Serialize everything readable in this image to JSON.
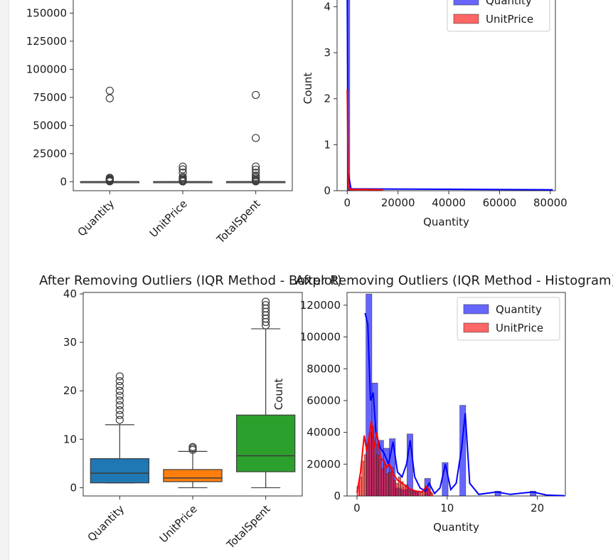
{
  "chart_data": [
    {
      "type": "box",
      "title": "",
      "xlabel": "",
      "ylabel": "",
      "categories": [
        "Quantity",
        "UnitPrice",
        "TotalSpent"
      ],
      "yticks": [
        0,
        25000,
        50000,
        75000,
        100000,
        125000,
        150000
      ],
      "ylim": [
        -8000,
        168000
      ],
      "boxes": [
        {
          "name": "Quantity",
          "q1": 1,
          "median": 3,
          "q3": 12,
          "whisker_low": 1,
          "whisker_high": 27,
          "outliers": [
            81000,
            74200,
            3500,
            2800,
            2000,
            1500,
            1000,
            600,
            300
          ]
        },
        {
          "name": "UnitPrice",
          "q1": 1.25,
          "median": 2,
          "q3": 4,
          "whisker_low": 0,
          "whisker_high": 8,
          "outliers": [
            13500,
            11000,
            8100,
            4200,
            3100,
            2000,
            1200,
            600,
            200
          ]
        },
        {
          "name": "TotalSpent",
          "q1": 4,
          "median": 12,
          "q3": 20,
          "whisker_low": 0,
          "whisker_high": 44,
          "outliers": [
            77200,
            38900,
            13500,
            10800,
            8000,
            5500,
            4000,
            2800,
            1500,
            800,
            300
          ]
        }
      ],
      "colors": {
        "box": "#ffffff",
        "line": "#3c3c3c"
      }
    },
    {
      "type": "histogram",
      "title": "",
      "xlabel": "Quantity",
      "ylabel": "Count",
      "xticks": [
        0,
        20000,
        40000,
        60000,
        80000
      ],
      "yticks": [
        0,
        1,
        2,
        3,
        4
      ],
      "xlim": [
        -4000,
        82000
      ],
      "ylim": [
        0,
        4.3
      ],
      "series": [
        {
          "name": "Quantity",
          "color": "#0000ff",
          "bins": [
            {
              "x0": 0,
              "x1": 1000,
              "count": 4.3
            },
            {
              "x0": 1000,
              "x1": 3000,
              "count": 0.04
            }
          ],
          "kde": [
            [
              0,
              4.3
            ],
            [
              300,
              0.4
            ],
            [
              1500,
              0.04
            ],
            [
              81000,
              0.02
            ]
          ]
        },
        {
          "name": "UnitPrice",
          "color": "#ff0000",
          "bins": [
            {
              "x0": 0,
              "x1": 400,
              "count": 2.2
            },
            {
              "x0": 400,
              "x1": 14000,
              "count": 0.03
            }
          ],
          "kde": [
            [
              0,
              2.2
            ],
            [
              400,
              0.1
            ],
            [
              1500,
              0.03
            ],
            [
              14000,
              0.02
            ]
          ]
        }
      ],
      "legend": "top-right"
    },
    {
      "type": "box",
      "title": "After Removing Outliers (IQR Method - Boxplot)",
      "xlabel": "",
      "ylabel": "",
      "categories": [
        "Quantity",
        "UnitPrice",
        "TotalSpent"
      ],
      "yticks": [
        0,
        10,
        20,
        30,
        40
      ],
      "ylim": [
        -1.7,
        40.3
      ],
      "boxes": [
        {
          "name": "Quantity",
          "q1": 1,
          "median": 3,
          "q3": 6,
          "whisker_low": 1,
          "whisker_high": 13,
          "outliers": [
            14,
            15,
            16,
            17,
            18,
            19,
            20,
            21,
            22,
            23
          ],
          "color": "#1f77b4"
        },
        {
          "name": "UnitPrice",
          "q1": 1.25,
          "median": 2,
          "q3": 3.75,
          "whisker_low": 0,
          "whisker_high": 7.5,
          "outliers": [
            7.8,
            8.1,
            8.4
          ],
          "color": "#ff7f0e"
        },
        {
          "name": "TotalSpent",
          "q1": 3.3,
          "median": 6.6,
          "q3": 15,
          "whisker_low": 0,
          "whisker_high": 32.8,
          "outliers": [
            33.5,
            34.2,
            34.9,
            35.6,
            36.3,
            37,
            37.7,
            38.4
          ],
          "color": "#2ca02c"
        }
      ],
      "colors": {
        "line": "#3c3c3c"
      }
    },
    {
      "type": "histogram",
      "title": "After Removing Outliers (IQR Method - Histogram)",
      "xlabel": "Quantity",
      "ylabel": "Count",
      "xticks": [
        0,
        10,
        20
      ],
      "yticks": [
        0,
        20000,
        40000,
        60000,
        80000,
        100000,
        120000
      ],
      "xlim": [
        -1.1,
        23.1
      ],
      "ylim": [
        0,
        128000
      ],
      "series": [
        {
          "name": "Quantity",
          "color": "#0000ff",
          "bins": [
            {
              "x0": 1.0,
              "x1": 1.65,
              "count": 127000
            },
            {
              "x0": 1.65,
              "x1": 2.3,
              "count": 71000
            },
            {
              "x0": 2.3,
              "x1": 2.95,
              "count": 35000
            },
            {
              "x0": 2.95,
              "x1": 3.6,
              "count": 30000
            },
            {
              "x0": 3.6,
              "x1": 4.25,
              "count": 36000
            },
            {
              "x0": 4.25,
              "x1": 4.9,
              "count": 5000
            },
            {
              "x0": 4.9,
              "x1": 5.55,
              "count": 4000
            },
            {
              "x0": 5.55,
              "x1": 6.2,
              "count": 39000
            },
            {
              "x0": 6.2,
              "x1": 6.85,
              "count": 3000
            },
            {
              "x0": 7.5,
              "x1": 8.15,
              "count": 11000
            },
            {
              "x0": 9.45,
              "x1": 10.1,
              "count": 21000
            },
            {
              "x0": 11.4,
              "x1": 12.05,
              "count": 57000
            },
            {
              "x0": 15.3,
              "x1": 15.95,
              "count": 3000
            },
            {
              "x0": 19.2,
              "x1": 19.85,
              "count": 3000
            }
          ],
          "kde": [
            [
              0.9,
              115000
            ],
            [
              1.2,
              108000
            ],
            [
              1.5,
              60000
            ],
            [
              1.8,
              65000
            ],
            [
              2.1,
              40000
            ],
            [
              2.6,
              30000
            ],
            [
              3.0,
              27000
            ],
            [
              3.5,
              20000
            ],
            [
              4.0,
              34000
            ],
            [
              4.5,
              15000
            ],
            [
              5.0,
              12000
            ],
            [
              5.5,
              20000
            ],
            [
              5.9,
              35000
            ],
            [
              6.4,
              12000
            ],
            [
              7.0,
              5000
            ],
            [
              7.6,
              3000
            ],
            [
              8.0,
              8000
            ],
            [
              8.6,
              1500
            ],
            [
              9.2,
              5000
            ],
            [
              9.8,
              20000
            ],
            [
              10.4,
              4000
            ],
            [
              11.0,
              8000
            ],
            [
              11.6,
              30000
            ],
            [
              12.0,
              52000
            ],
            [
              12.5,
              8000
            ],
            [
              13.5,
              1000
            ],
            [
              15.5,
              2500
            ],
            [
              17.0,
              1000
            ],
            [
              19.5,
              2500
            ],
            [
              21.0,
              600
            ],
            [
              23.0,
              200
            ]
          ]
        },
        {
          "name": "UnitPrice",
          "color": "#ff0000",
          "bins": [
            {
              "x0": 0.0,
              "x1": 0.27,
              "count": 6000
            },
            {
              "x0": 0.27,
              "x1": 0.54,
              "count": 12000
            },
            {
              "x0": 0.54,
              "x1": 0.81,
              "count": 22000
            },
            {
              "x0": 0.81,
              "x1": 1.08,
              "count": 26000
            },
            {
              "x0": 1.08,
              "x1": 1.35,
              "count": 33000
            },
            {
              "x0": 1.35,
              "x1": 1.62,
              "count": 40000
            },
            {
              "x0": 1.62,
              "x1": 1.89,
              "count": 44000
            },
            {
              "x0": 1.89,
              "x1": 2.16,
              "count": 33000
            },
            {
              "x0": 2.16,
              "x1": 2.43,
              "count": 26000
            },
            {
              "x0": 2.43,
              "x1": 2.7,
              "count": 23000
            },
            {
              "x0": 2.7,
              "x1": 2.97,
              "count": 17000
            },
            {
              "x0": 2.97,
              "x1": 3.24,
              "count": 20000
            },
            {
              "x0": 3.24,
              "x1": 3.51,
              "count": 14000
            },
            {
              "x0": 3.51,
              "x1": 3.78,
              "count": 15000
            },
            {
              "x0": 3.78,
              "x1": 4.05,
              "count": 18000
            },
            {
              "x0": 4.05,
              "x1": 4.32,
              "count": 10000
            },
            {
              "x0": 4.32,
              "x1": 4.59,
              "count": 8000
            },
            {
              "x0": 4.59,
              "x1": 4.86,
              "count": 12000
            },
            {
              "x0": 4.86,
              "x1": 5.13,
              "count": 9000
            },
            {
              "x0": 5.13,
              "x1": 5.4,
              "count": 6000
            },
            {
              "x0": 5.4,
              "x1": 5.67,
              "count": 7000
            },
            {
              "x0": 5.67,
              "x1": 5.94,
              "count": 4000
            },
            {
              "x0": 5.94,
              "x1": 6.21,
              "count": 3000
            },
            {
              "x0": 6.21,
              "x1": 6.48,
              "count": 2500
            },
            {
              "x0": 6.48,
              "x1": 6.75,
              "count": 3000
            },
            {
              "x0": 6.75,
              "x1": 7.02,
              "count": 2000
            },
            {
              "x0": 7.02,
              "x1": 7.29,
              "count": 2500
            },
            {
              "x0": 7.29,
              "x1": 7.56,
              "count": 3000
            },
            {
              "x0": 7.56,
              "x1": 7.83,
              "count": 6000
            },
            {
              "x0": 7.83,
              "x1": 8.1,
              "count": 4000
            },
            {
              "x0": 8.1,
              "x1": 8.37,
              "count": 2000
            }
          ],
          "kde": [
            [
              0.0,
              2000
            ],
            [
              0.4,
              15000
            ],
            [
              0.8,
              38000
            ],
            [
              1.1,
              28000
            ],
            [
              1.6,
              47000
            ],
            [
              1.9,
              30000
            ],
            [
              2.2,
              40000
            ],
            [
              2.6,
              24000
            ],
            [
              3.0,
              22000
            ],
            [
              3.3,
              18000
            ],
            [
              3.6,
              20000
            ],
            [
              4.0,
              14000
            ],
            [
              4.5,
              10000
            ],
            [
              5.0,
              8000
            ],
            [
              5.5,
              6000
            ],
            [
              6.0,
              4000
            ],
            [
              6.6,
              3000
            ],
            [
              7.2,
              2500
            ],
            [
              7.7,
              6000
            ],
            [
              8.1,
              3000
            ],
            [
              8.4,
              500
            ]
          ]
        }
      ],
      "legend": "top-right"
    }
  ]
}
